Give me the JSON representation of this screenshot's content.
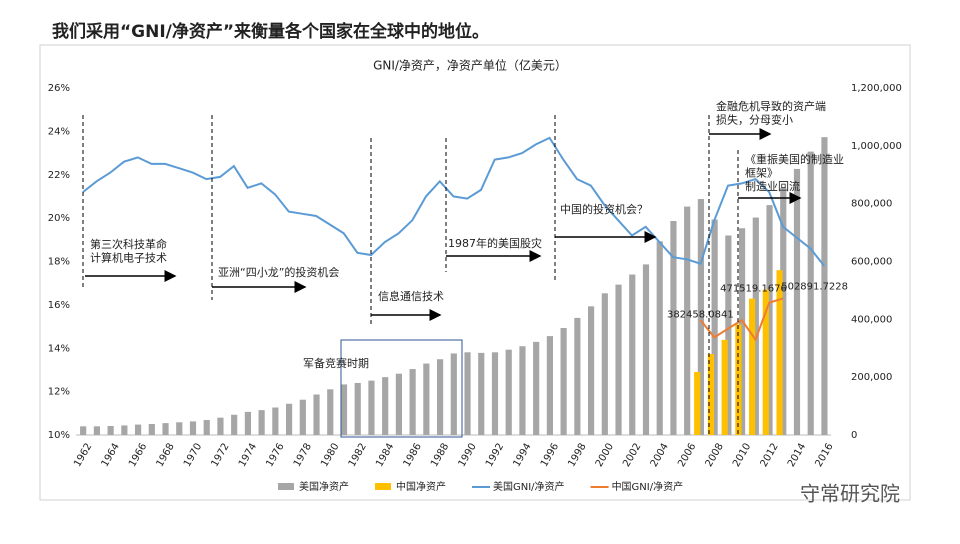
{
  "chart_data": {
    "type": "bar-line",
    "heading": "我们采用“GNI/净资产”来衡量各个国家在全球中的地位。",
    "title": "GNI/净资产，净资产单位（亿美元）",
    "categories": [
      "1962",
      null,
      "1964",
      null,
      "1966",
      null,
      "1968",
      null,
      "1970",
      null,
      "1972",
      null,
      "1974",
      null,
      "1976",
      null,
      "1978",
      null,
      "1980",
      null,
      "1982",
      null,
      "1984",
      null,
      "1986",
      null,
      "1988",
      null,
      "1990",
      null,
      "1992",
      null,
      "1994",
      null,
      "1996",
      null,
      "1998",
      null,
      "2000",
      null,
      "2002",
      null,
      "2004",
      null,
      "2006",
      null,
      "2008",
      null,
      "2010",
      null,
      "2012",
      null,
      "2014",
      null,
      "2016"
    ],
    "series": [
      {
        "name": "美国净资产",
        "type": "bar",
        "axis": "y2",
        "color": "#a6a6a6",
        "values": [
          30000,
          30000,
          31000,
          33000,
          36000,
          38000,
          41000,
          44000,
          47000,
          52000,
          60000,
          70000,
          80000,
          86000,
          95000,
          108000,
          122000,
          140000,
          158000,
          175000,
          180000,
          188000,
          200000,
          212000,
          228000,
          247000,
          262000,
          282000,
          286000,
          284000,
          286000,
          295000,
          307000,
          322000,
          342000,
          370000,
          405000,
          445000,
          490000,
          520000,
          555000,
          590000,
          670000,
          740000,
          790000,
          816000,
          745000,
          690000,
          715000,
          752000,
          795000,
          855000,
          920000,
          980000,
          1030000
        ]
      },
      {
        "name": "中国净资产",
        "type": "bar",
        "axis": "y2",
        "color": "#ffc000",
        "values": [
          null,
          null,
          null,
          null,
          null,
          null,
          null,
          null,
          null,
          null,
          null,
          null,
          null,
          null,
          null,
          null,
          null,
          null,
          null,
          null,
          null,
          null,
          null,
          null,
          null,
          null,
          null,
          null,
          null,
          null,
          null,
          null,
          null,
          null,
          null,
          null,
          null,
          null,
          null,
          null,
          null,
          null,
          null,
          null,
          null,
          218000,
          280000,
          329000,
          382458.0841,
          471519.1676,
          502891.7228,
          570000,
          null,
          null,
          null
        ]
      },
      {
        "name": "美国GNI/净资产",
        "type": "line",
        "axis": "y",
        "color": "#5b9bd5",
        "values": [
          21.2,
          21.7,
          22.1,
          22.6,
          22.8,
          22.5,
          22.5,
          22.3,
          22.1,
          21.8,
          21.9,
          22.4,
          21.4,
          21.6,
          21.1,
          20.3,
          20.2,
          20.1,
          19.7,
          19.3,
          18.4,
          18.3,
          18.9,
          19.3,
          19.9,
          21.0,
          21.7,
          21.0,
          20.9,
          21.3,
          22.7,
          22.8,
          23.0,
          23.4,
          23.7,
          22.7,
          21.8,
          21.5,
          20.6,
          19.9,
          19.2,
          19.6,
          18.9,
          18.2,
          18.1,
          17.9,
          19.9,
          21.5,
          21.6,
          21.8,
          21.2,
          19.6,
          19.1,
          18.6,
          17.8
        ]
      },
      {
        "name": "中国GNI/净资产",
        "type": "line",
        "axis": "y",
        "color": "#ed7d31",
        "values": [
          null,
          null,
          null,
          null,
          null,
          null,
          null,
          null,
          null,
          null,
          null,
          null,
          null,
          null,
          null,
          null,
          null,
          null,
          null,
          null,
          null,
          null,
          null,
          null,
          null,
          null,
          null,
          null,
          null,
          null,
          null,
          null,
          null,
          null,
          null,
          null,
          null,
          null,
          null,
          null,
          null,
          null,
          null,
          null,
          null,
          15.3,
          14.5,
          14.9,
          15.3,
          14.4,
          16.1,
          16.3,
          null,
          null,
          null
        ]
      }
    ],
    "ylim": [
      10,
      26
    ],
    "yticks": [
      {
        "value": 10,
        "label": "10%"
      },
      {
        "value": 12,
        "label": "12%"
      },
      {
        "value": 14,
        "label": "14%"
      },
      {
        "value": 16,
        "label": "16%"
      },
      {
        "value": 18,
        "label": "18%"
      },
      {
        "value": 20,
        "label": "20%"
      },
      {
        "value": 22,
        "label": "22%"
      },
      {
        "value": 24,
        "label": "24%"
      },
      {
        "value": 26,
        "label": "26%"
      }
    ],
    "y2lim": [
      0,
      1200000
    ],
    "y2ticks": [
      0,
      {
        "value": 200000,
        "label": "200,000"
      },
      {
        "value": 400000,
        "label": "400,000"
      },
      {
        "value": 600000,
        "label": "600,000"
      },
      {
        "value": 800000,
        "label": "800,000"
      },
      {
        "value": 1000000,
        "label": "1,000,000"
      },
      {
        "value": 1200000,
        "label": "1,200,000"
      }
    ],
    "annotations": [
      [
        "第三次科技革命",
        "计算机电子技术"
      ],
      [
        "亚洲“四小龙”的投资机会"
      ],
      [
        "信息通信技术"
      ],
      [
        "1987年的美国股灾"
      ],
      [
        "中国的投资机会？"
      ],
      [
        "金融危机导致的资产端",
        "损失，分母变小"
      ],
      [
        "《重振美国的制造业",
        "框架》",
        "制造业回流"
      ],
      [
        "军备竞赛时期"
      ]
    ],
    "watermark": "守常研究院"
  }
}
